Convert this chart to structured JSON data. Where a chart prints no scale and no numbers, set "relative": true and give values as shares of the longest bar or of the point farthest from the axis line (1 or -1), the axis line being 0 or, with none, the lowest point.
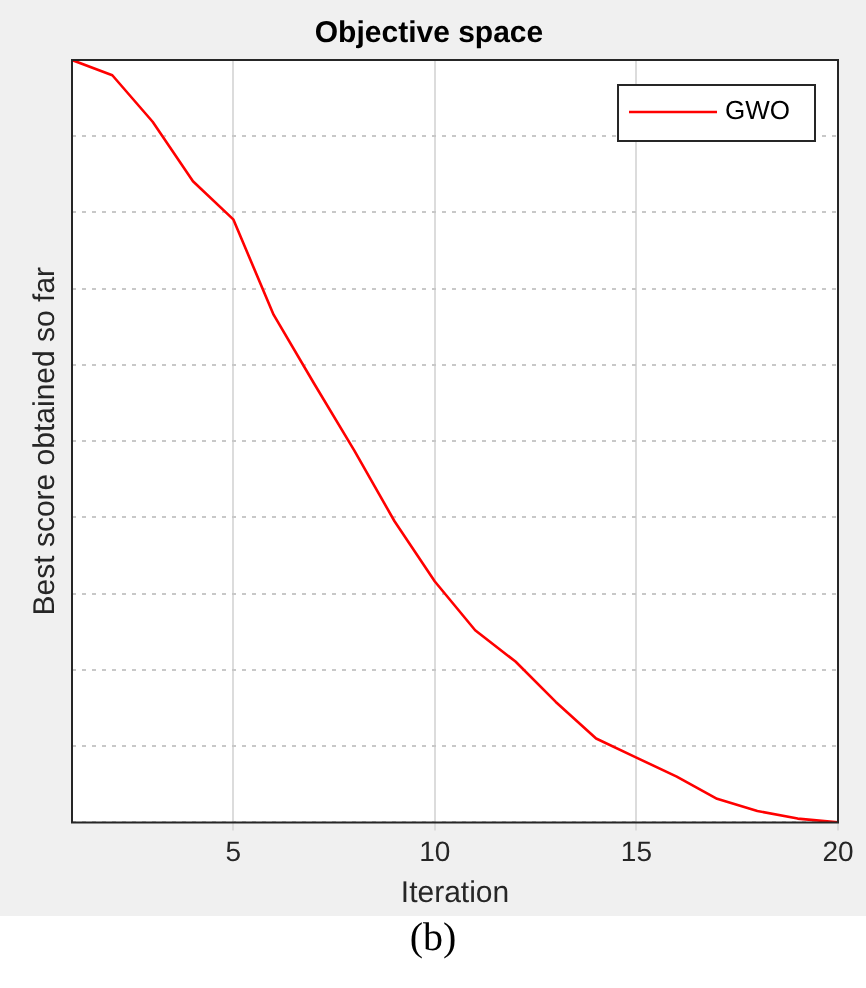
{
  "chart_data": {
    "type": "line",
    "title": "Objective space",
    "xlabel": "Iteration",
    "ylabel": "Best score obtained so far",
    "x": [
      1,
      2,
      3,
      4,
      5,
      6,
      7,
      8,
      9,
      10,
      11,
      12,
      13,
      14,
      15,
      16,
      17,
      18,
      19,
      20
    ],
    "series": [
      {
        "name": "GWO",
        "color": "#ff0000",
        "values": [
          1,
          0.98,
          0.919,
          0.841,
          0.791,
          0.666,
          0.576,
          0.488,
          0.395,
          0.316,
          0.252,
          0.211,
          0.158,
          0.11,
          0.085,
          0.06,
          0.031,
          0.015,
          0.005,
          0
        ]
      }
    ],
    "relative": true,
    "xlim": [
      1,
      20
    ],
    "xticks": [
      5,
      10,
      15,
      20
    ],
    "grid": true,
    "legend": "top right",
    "marker": "none",
    "line_style": "solid",
    "annotations": [
      "(b)"
    ]
  }
}
